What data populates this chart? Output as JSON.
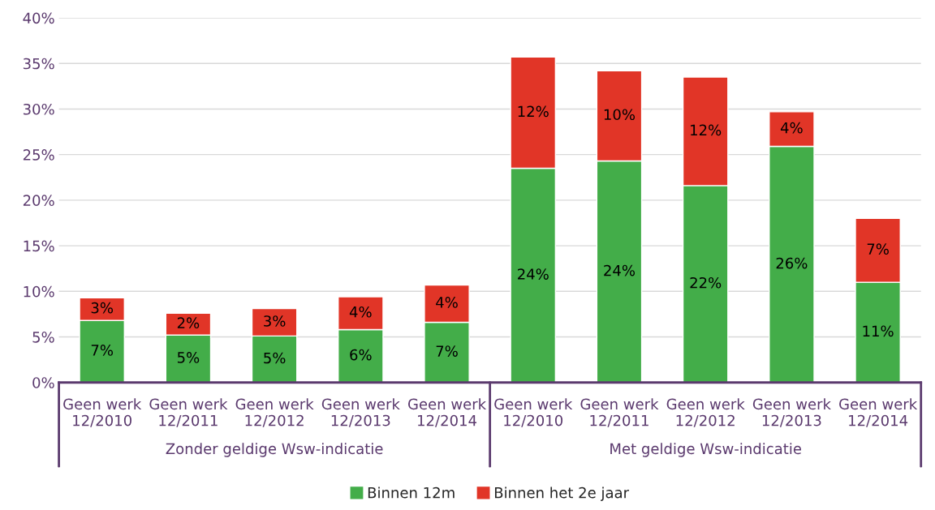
{
  "chart_data": {
    "type": "bar",
    "stacked": true,
    "categories": [
      "Geen werk\n12/2010",
      "Geen werk\n12/2011",
      "Geen werk\n12/2012",
      "Geen werk\n12/2013",
      "Geen werk\n12/2014",
      "Geen werk\n12/2010",
      "Geen werk\n12/2011",
      "Geen werk\n12/2012",
      "Geen werk\n12/2013",
      "Geen werk\n12/2014"
    ],
    "series": [
      {
        "name": "Binnen 12m",
        "color": "#43ad49",
        "values": [
          6.8,
          5.2,
          5.1,
          5.8,
          6.6,
          23.5,
          24.3,
          21.6,
          25.9,
          11.0
        ],
        "value_labels": [
          "7%",
          "5%",
          "5%",
          "6%",
          "7%",
          "24%",
          "24%",
          "22%",
          "26%",
          "11%"
        ]
      },
      {
        "name": "Binnen het 2e jaar",
        "color": "#e13527",
        "values": [
          2.5,
          2.4,
          3.0,
          3.6,
          4.1,
          12.2,
          9.9,
          11.9,
          3.8,
          7.0
        ],
        "value_labels": [
          "3%",
          "2%",
          "3%",
          "4%",
          "4%",
          "12%",
          "10%",
          "12%",
          "4%",
          "7%"
        ]
      }
    ],
    "ylim": [
      0,
      40
    ],
    "yticks": [
      {
        "value": 0,
        "label": "0%"
      },
      {
        "value": 5,
        "label": "5%"
      },
      {
        "value": 10,
        "label": "10%"
      },
      {
        "value": 15,
        "label": "15%"
      },
      {
        "value": 20,
        "label": "20%"
      },
      {
        "value": 25,
        "label": "25%"
      },
      {
        "value": 30,
        "label": "30%"
      },
      {
        "value": 35,
        "label": "35%"
      },
      {
        "value": 40,
        "label": "40%"
      }
    ],
    "annotations": [
      "Zonder geldige Wsw-indicatie",
      "Met geldige Wsw-indicatie"
    ],
    "grid": "y",
    "legend": "bottom"
  }
}
